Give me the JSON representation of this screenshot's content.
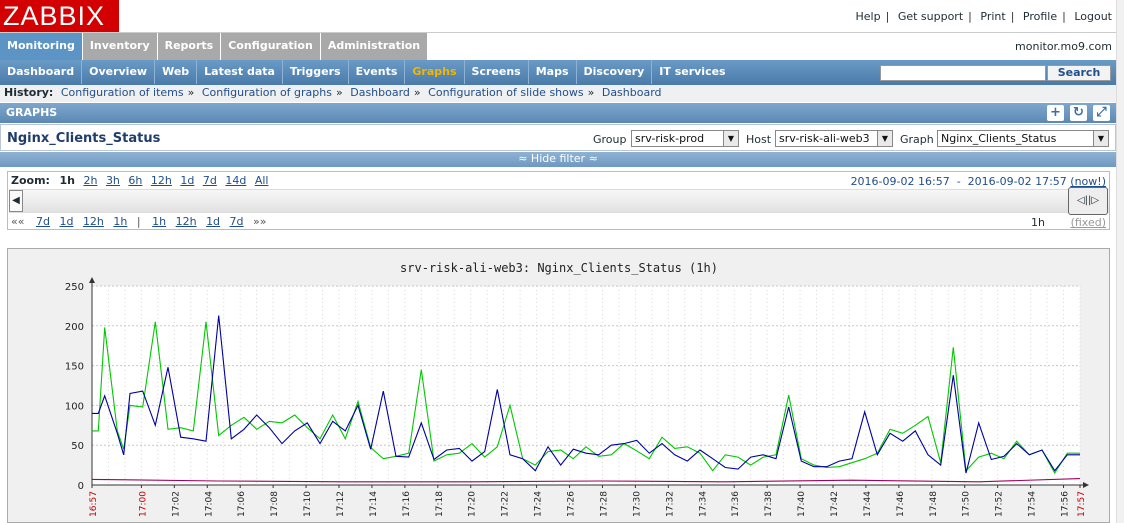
{
  "app": {
    "logo": "ZABBIX",
    "server": "monitor.mo9.com"
  },
  "toplinks": [
    "Help",
    "Get support",
    "Print",
    "Profile",
    "Logout"
  ],
  "main_menu": [
    {
      "label": "Monitoring",
      "active": true
    },
    {
      "label": "Inventory",
      "active": false
    },
    {
      "label": "Reports",
      "active": false
    },
    {
      "label": "Configuration",
      "active": false
    },
    {
      "label": "Administration",
      "active": false
    }
  ],
  "sub_menu": [
    {
      "label": "Dashboard",
      "selected": false
    },
    {
      "label": "Overview",
      "selected": false
    },
    {
      "label": "Web",
      "selected": false
    },
    {
      "label": "Latest data",
      "selected": false
    },
    {
      "label": "Triggers",
      "selected": false
    },
    {
      "label": "Events",
      "selected": false
    },
    {
      "label": "Graphs",
      "selected": true
    },
    {
      "label": "Screens",
      "selected": false
    },
    {
      "label": "Maps",
      "selected": false
    },
    {
      "label": "Discovery",
      "selected": false
    },
    {
      "label": "IT services",
      "selected": false
    }
  ],
  "search": {
    "value": "",
    "button": "Search"
  },
  "history": {
    "label": "History:",
    "items": [
      "Configuration of items",
      "Configuration of graphs",
      "Dashboard",
      "Configuration of slide shows",
      "Dashboard"
    ]
  },
  "graphs_bar": {
    "title": "GRAPHS"
  },
  "title_row": {
    "title": "Nginx_Clients_Status",
    "group_label": "Group",
    "group_value": "srv-risk-prod",
    "host_label": "Host",
    "host_value": "srv-risk-ali-web3",
    "graph_label": "Graph",
    "graph_value": "Nginx_Clients_Status"
  },
  "hide_filter": "≈ Hide filter ≈",
  "zoom": {
    "label": "Zoom:",
    "options": [
      "1h",
      "2h",
      "3h",
      "6h",
      "12h",
      "1d",
      "7d",
      "14d",
      "All"
    ],
    "current": "1h",
    "period_from": "2016-09-02 16:57",
    "period_sep": "-",
    "period_to": "2016-09-02 17:57",
    "now": "(now!)",
    "nav_back_prefix": "««",
    "nav_back": [
      "7d",
      "1d",
      "12h",
      "1h"
    ],
    "nav_sep": "|",
    "nav_fwd": [
      "1h",
      "12h",
      "1d",
      "7d"
    ],
    "nav_fwd_suffix": "»»",
    "period_length": "1h",
    "fixed": "(fixed)"
  },
  "chart_data": {
    "type": "line",
    "title": "srv-risk-ali-web3: Nginx_Clients_Status (1h)",
    "ylim": [
      0,
      250
    ],
    "yticks": [
      0,
      50,
      100,
      150,
      200,
      250
    ],
    "xlim_minutes": [
      0,
      60
    ],
    "xticks": [
      "16:57",
      "17:00",
      "17:02",
      "17:04",
      "17:06",
      "17:08",
      "17:10",
      "17:12",
      "17:14",
      "17:16",
      "17:18",
      "17:20",
      "17:22",
      "17:24",
      "17:26",
      "17:28",
      "17:30",
      "17:32",
      "17:34",
      "17:36",
      "17:38",
      "17:40",
      "17:42",
      "17:44",
      "17:46",
      "17:48",
      "17:50",
      "17:52",
      "17:54",
      "17:56",
      "17:57"
    ],
    "xticks_red": [
      "16:57",
      "17:00",
      "17:57"
    ],
    "grid": true,
    "colors": {
      "green": "#00c800",
      "blue": "#0000a0",
      "purple": "#a00060"
    },
    "series": [
      {
        "color": "green",
        "points": [
          [
            0,
            68
          ],
          [
            0.5,
            68
          ],
          [
            1,
            198
          ],
          [
            2,
            68
          ],
          [
            2.5,
            45
          ],
          [
            3,
            100
          ],
          [
            4,
            98
          ],
          [
            5,
            205
          ],
          [
            6,
            70
          ],
          [
            7,
            72
          ],
          [
            8,
            68
          ],
          [
            9,
            205
          ],
          [
            10,
            62
          ],
          [
            11,
            75
          ],
          [
            12,
            85
          ],
          [
            13,
            70
          ],
          [
            14,
            80
          ],
          [
            15,
            78
          ],
          [
            16,
            88
          ],
          [
            17,
            72
          ],
          [
            18,
            58
          ],
          [
            19,
            88
          ],
          [
            20,
            58
          ],
          [
            21,
            105
          ],
          [
            22,
            47
          ],
          [
            23,
            33
          ],
          [
            24,
            36
          ],
          [
            25,
            40
          ],
          [
            26,
            145
          ],
          [
            27,
            30
          ],
          [
            28,
            38
          ],
          [
            29,
            40
          ],
          [
            30,
            52
          ],
          [
            31,
            35
          ],
          [
            32,
            48
          ],
          [
            33,
            100
          ],
          [
            34,
            33
          ],
          [
            35,
            25
          ],
          [
            36,
            42
          ],
          [
            37,
            44
          ],
          [
            38,
            33
          ],
          [
            39,
            48
          ],
          [
            40,
            36
          ],
          [
            41,
            38
          ],
          [
            42,
            52
          ],
          [
            43,
            43
          ],
          [
            44,
            33
          ],
          [
            45,
            60
          ],
          [
            46,
            46
          ],
          [
            47,
            48
          ],
          [
            48,
            40
          ],
          [
            49,
            18
          ],
          [
            50,
            38
          ],
          [
            51,
            35
          ],
          [
            52,
            25
          ],
          [
            53,
            35
          ],
          [
            54,
            38
          ],
          [
            55,
            113
          ],
          [
            56,
            33
          ],
          [
            57,
            25
          ],
          [
            58,
            22
          ],
          [
            59,
            23
          ],
          [
            60,
            28
          ],
          [
            61,
            33
          ],
          [
            62,
            40
          ],
          [
            63,
            70
          ],
          [
            64,
            65
          ],
          [
            65,
            75
          ],
          [
            66,
            86
          ],
          [
            67,
            28
          ],
          [
            68,
            173
          ],
          [
            69,
            18
          ],
          [
            70,
            35
          ],
          [
            71,
            40
          ],
          [
            72,
            33
          ],
          [
            73,
            55
          ],
          [
            74,
            38
          ],
          [
            75,
            44
          ],
          [
            76,
            15
          ],
          [
            77,
            40
          ],
          [
            78,
            40
          ]
        ]
      },
      {
        "color": "blue",
        "points": [
          [
            0,
            90
          ],
          [
            0.5,
            90
          ],
          [
            1,
            112
          ],
          [
            2,
            65
          ],
          [
            2.5,
            38
          ],
          [
            3,
            115
          ],
          [
            4,
            118
          ],
          [
            5,
            75
          ],
          [
            6,
            148
          ],
          [
            7,
            60
          ],
          [
            8,
            58
          ],
          [
            9,
            55
          ],
          [
            10,
            213
          ],
          [
            11,
            58
          ],
          [
            12,
            70
          ],
          [
            13,
            88
          ],
          [
            14,
            72
          ],
          [
            15,
            52
          ],
          [
            16,
            68
          ],
          [
            17,
            78
          ],
          [
            18,
            52
          ],
          [
            19,
            80
          ],
          [
            20,
            68
          ],
          [
            21,
            100
          ],
          [
            22,
            45
          ],
          [
            23,
            118
          ],
          [
            24,
            36
          ],
          [
            25,
            35
          ],
          [
            26,
            78
          ],
          [
            27,
            32
          ],
          [
            28,
            44
          ],
          [
            29,
            46
          ],
          [
            30,
            30
          ],
          [
            31,
            42
          ],
          [
            32,
            120
          ],
          [
            33,
            38
          ],
          [
            34,
            33
          ],
          [
            35,
            18
          ],
          [
            36,
            48
          ],
          [
            37,
            25
          ],
          [
            38,
            45
          ],
          [
            39,
            40
          ],
          [
            40,
            38
          ],
          [
            41,
            50
          ],
          [
            42,
            52
          ],
          [
            43,
            56
          ],
          [
            44,
            40
          ],
          [
            45,
            52
          ],
          [
            46,
            38
          ],
          [
            47,
            30
          ],
          [
            48,
            44
          ],
          [
            49,
            33
          ],
          [
            50,
            22
          ],
          [
            51,
            20
          ],
          [
            52,
            35
          ],
          [
            53,
            38
          ],
          [
            54,
            33
          ],
          [
            55,
            98
          ],
          [
            56,
            30
          ],
          [
            57,
            23
          ],
          [
            58,
            23
          ],
          [
            59,
            30
          ],
          [
            60,
            33
          ],
          [
            61,
            92
          ],
          [
            62,
            38
          ],
          [
            63,
            65
          ],
          [
            64,
            55
          ],
          [
            65,
            68
          ],
          [
            66,
            38
          ],
          [
            67,
            25
          ],
          [
            68,
            138
          ],
          [
            69,
            15
          ],
          [
            70,
            78
          ],
          [
            71,
            32
          ],
          [
            72,
            36
          ],
          [
            73,
            52
          ],
          [
            74,
            38
          ],
          [
            75,
            44
          ],
          [
            76,
            18
          ],
          [
            77,
            38
          ],
          [
            78,
            38
          ]
        ]
      },
      {
        "color": "purple",
        "points": [
          [
            0,
            7
          ],
          [
            10,
            5
          ],
          [
            20,
            4
          ],
          [
            30,
            4
          ],
          [
            40,
            5
          ],
          [
            50,
            4
          ],
          [
            60,
            6
          ],
          [
            70,
            4
          ],
          [
            78,
            8
          ]
        ]
      }
    ]
  }
}
